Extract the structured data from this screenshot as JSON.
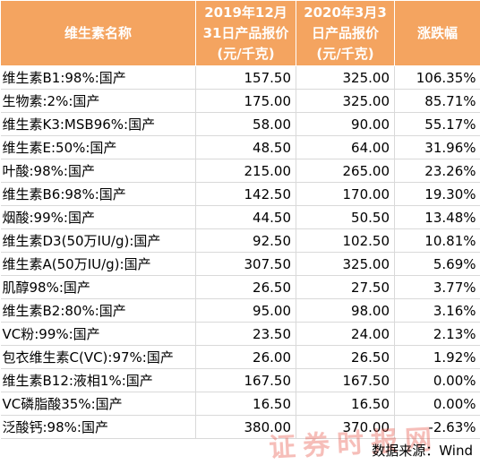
{
  "header": {
    "col1": "维生素名称",
    "col2_line1": "2019年12月",
    "col2_line2": "31日产品报价",
    "col2_line3": "(元/千克)",
    "col3_line1": "2020年3月3",
    "col3_line2": "日产品报价",
    "col3_line3": "(元/千克)",
    "col4": "涨跌幅"
  },
  "rows": [
    {
      "name": "维生素B1:98%:国产",
      "p2019": "157.50",
      "p2020": "325.00",
      "change": "106.35%"
    },
    {
      "name": "生物素:2%:国产",
      "p2019": "175.00",
      "p2020": "325.00",
      "change": "85.71%"
    },
    {
      "name": "维生素K3:MSB96%:国产",
      "p2019": "58.00",
      "p2020": "90.00",
      "change": "55.17%"
    },
    {
      "name": "维生素E:50%:国产",
      "p2019": "48.50",
      "p2020": "64.00",
      "change": "31.96%"
    },
    {
      "name": "叶酸:98%:国产",
      "p2019": "215.00",
      "p2020": "265.00",
      "change": "23.26%"
    },
    {
      "name": "维生素B6:98%:国产",
      "p2019": "142.50",
      "p2020": "170.00",
      "change": "19.30%"
    },
    {
      "name": "烟酸:99%:国产",
      "p2019": "44.50",
      "p2020": "50.50",
      "change": "13.48%"
    },
    {
      "name": "维生素D3(50万IU/g):国产",
      "p2019": "92.50",
      "p2020": "102.50",
      "change": "10.81%"
    },
    {
      "name": "维生素A(50万IU/g):国产",
      "p2019": "307.50",
      "p2020": "325.00",
      "change": "5.69%"
    },
    {
      "name": "肌醇98%:国产",
      "p2019": "26.50",
      "p2020": "27.50",
      "change": "3.77%"
    },
    {
      "name": "维生素B2:80%:国产",
      "p2019": "95.00",
      "p2020": "98.00",
      "change": "3.16%"
    },
    {
      "name": "VC粉:99%:国产",
      "p2019": "23.50",
      "p2020": "24.00",
      "change": "2.13%"
    },
    {
      "name": "包衣维生素C(VC):97%:国产",
      "p2019": "26.00",
      "p2020": "26.50",
      "change": "1.92%"
    },
    {
      "name": "维生素B12:液相1%:国产",
      "p2019": "167.50",
      "p2020": "167.50",
      "change": "0.00%"
    },
    {
      "name": "VC磷脂酸35%:国产",
      "p2019": "16.50",
      "p2020": "16.50",
      "change": "0.00%"
    },
    {
      "name": "泛酸钙:98%:国产",
      "p2019": "380.00",
      "p2020": "370.00",
      "change": "-2.63%"
    }
  ],
  "source": "数据来源：Wind",
  "watermark": "证券时报网",
  "colors": {
    "header_bg": "#f4a460",
    "watermark": "#e8483a"
  }
}
